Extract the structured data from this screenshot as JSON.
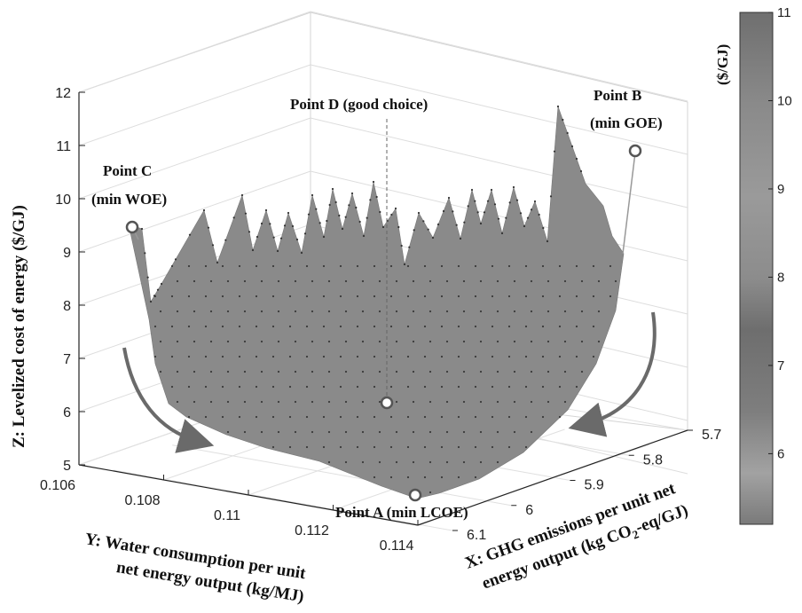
{
  "chart_data": {
    "type": "surface3d",
    "title": "",
    "axes": {
      "x": {
        "label_parts": [
          "X: GHG emissions per unit net",
          "energy output (kg CO",
          "2",
          "-eq/GJ)"
        ],
        "ticks": [
          "5.7",
          "5.8",
          "5.9",
          "6",
          "6.1"
        ],
        "range": [
          5.7,
          6.1
        ]
      },
      "y": {
        "label_lines": [
          "Y: Water consumption per unit",
          "net energy output (kg/MJ)"
        ],
        "ticks": [
          "0.106",
          "0.108",
          "0.11",
          "0.112",
          "0.114"
        ],
        "range": [
          0.106,
          0.114
        ]
      },
      "z": {
        "label": "Z: Levelized cost of energy ($/GJ)",
        "ticks": [
          "5",
          "6",
          "7",
          "8",
          "9",
          "10",
          "11",
          "12"
        ],
        "range": [
          5,
          12
        ]
      }
    },
    "colorbar": {
      "title": "($/GJ)",
      "ticks": [
        "6",
        "7",
        "8",
        "9",
        "10",
        "11"
      ],
      "range": [
        5.2,
        11
      ]
    },
    "points": [
      {
        "id": "A",
        "lines": [
          "Point A (min LCOE)"
        ],
        "lcoe": 5.0
      },
      {
        "id": "B",
        "lines": [
          "Point B",
          "(min GOE)"
        ],
        "lcoe": 11.9
      },
      {
        "id": "C",
        "lines": [
          "Point C",
          "(min WOE)"
        ],
        "lcoe": 9.6
      },
      {
        "id": "D",
        "lines": [
          "Point D (good choice)"
        ],
        "lcoe": 6.2
      }
    ],
    "grid": true
  }
}
